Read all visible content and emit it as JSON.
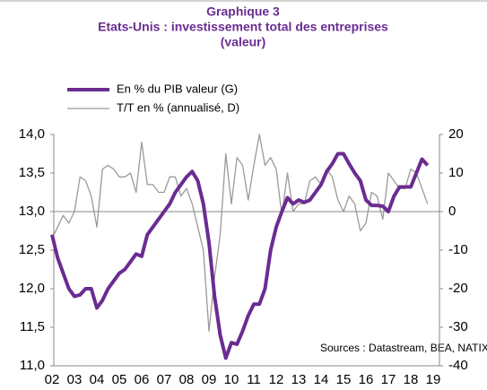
{
  "chart_data": {
    "type": "line",
    "title": [
      "Graphique 3",
      "Etats-Unis : investissement total des entreprises",
      "(valeur)"
    ],
    "annotation": "Sources : Datastream, BEA, NATIXIS",
    "categories": [
      "02",
      null,
      null,
      null,
      "03",
      null,
      null,
      null,
      "04",
      null,
      null,
      null,
      "05",
      null,
      null,
      null,
      "06",
      null,
      null,
      null,
      "07",
      null,
      null,
      null,
      "08",
      null,
      null,
      null,
      "09",
      null,
      null,
      null,
      "10",
      null,
      null,
      null,
      "11",
      null,
      null,
      null,
      "12",
      null,
      null,
      null,
      "13",
      null,
      null,
      null,
      "14",
      null,
      null,
      null,
      "15",
      null,
      null,
      null,
      "16",
      null,
      null,
      null,
      "17",
      null,
      null,
      null,
      "18",
      null,
      null,
      null,
      "19",
      null,
      null,
      null
    ],
    "series": [
      {
        "name": "En % du PIB valeur (G)",
        "color": "#6a2c91",
        "values": [
          12.7,
          12.4,
          12.2,
          12.0,
          11.9,
          11.92,
          12.0,
          12.0,
          11.75,
          11.85,
          12.0,
          12.1,
          12.2,
          12.25,
          12.35,
          12.45,
          12.42,
          12.7,
          12.8,
          12.9,
          13.0,
          13.1,
          13.25,
          13.35,
          13.45,
          13.52,
          13.4,
          13.1,
          12.6,
          11.9,
          11.4,
          11.1,
          11.3,
          11.28,
          11.45,
          11.65,
          11.8,
          11.8,
          12.0,
          12.5,
          12.8,
          13.0,
          13.18,
          13.1,
          13.15,
          13.12,
          13.15,
          13.25,
          13.35,
          13.52,
          13.62,
          13.75,
          13.75,
          13.62,
          13.5,
          13.4,
          13.15,
          13.08,
          13.08,
          13.07,
          13.0,
          13.2,
          13.32,
          13.32,
          13.32,
          13.5,
          13.68,
          13.6,
          null,
          null,
          null,
          null
        ]
      },
      {
        "name": "T/T en % (annualisé, D)",
        "color": "#9a9a9a",
        "axis": "y2",
        "values": [
          -7,
          -4,
          -1,
          -3,
          0,
          9,
          8,
          4,
          -4,
          11,
          12,
          11,
          9,
          9,
          10,
          5,
          18,
          7,
          7,
          5,
          5,
          9,
          9,
          4,
          6,
          2,
          -4,
          -10,
          -31,
          -17,
          -6,
          15,
          2,
          14,
          12,
          3,
          12,
          20,
          12,
          14,
          11,
          -1,
          10,
          0,
          2,
          2,
          8,
          9,
          7,
          11,
          9,
          3,
          0,
          4,
          2,
          -5,
          -3,
          5,
          4,
          -2,
          10,
          8,
          6,
          6,
          11,
          10,
          6,
          2,
          null,
          null,
          null,
          null
        ]
      }
    ],
    "ylim": [
      11,
      14
    ],
    "yticks": [
      {
        "value": 11,
        "label": "11,0"
      },
      {
        "value": 11.5,
        "label": "11,5"
      },
      {
        "value": 12,
        "label": "12,0"
      },
      {
        "value": 12.5,
        "label": "12,5"
      },
      {
        "value": 13,
        "label": "13,0"
      },
      {
        "value": 13.5,
        "label": "13,5"
      },
      {
        "value": 14,
        "label": "14,0"
      }
    ],
    "y2lim": [
      -40,
      20
    ],
    "y2ticks": [
      -40,
      -30,
      -20,
      -10,
      0,
      10,
      20
    ]
  }
}
